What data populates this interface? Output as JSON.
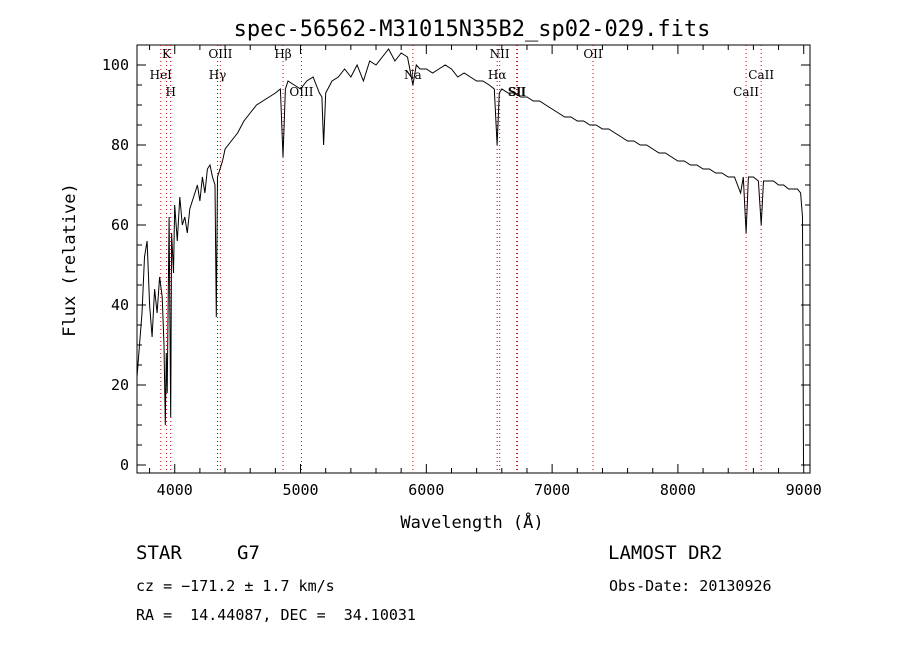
{
  "chart_data": {
    "type": "line",
    "title": "spec-56562-M31015N35B2_sp02-029.fits",
    "xlabel": "Wavelength (Å)",
    "ylabel": "Flux (relative)",
    "xlim": [
      3700,
      9050
    ],
    "ylim": [
      -2,
      105
    ],
    "xticks": [
      4000,
      5000,
      6000,
      7000,
      8000,
      9000
    ],
    "yticks": [
      0,
      20,
      40,
      60,
      80,
      100
    ],
    "grid": false,
    "line_color": "#000000",
    "marker_color": "#cc0000",
    "series": [
      {
        "x": [
          3700,
          3720,
          3740,
          3760,
          3780,
          3800,
          3820,
          3840,
          3860,
          3880,
          3900,
          3915,
          3925,
          3933,
          3940,
          3955,
          3968,
          3975,
          3990,
          4000,
          4020,
          4040,
          4060,
          4080,
          4100,
          4120,
          4140,
          4160,
          4180,
          4200,
          4220,
          4240,
          4260,
          4280,
          4300,
          4320,
          4330,
          4340,
          4360,
          4380,
          4400,
          4450,
          4500,
          4550,
          4600,
          4650,
          4700,
          4750,
          4800,
          4840,
          4861,
          4880,
          4900,
          4950,
          5000,
          5050,
          5100,
          5150,
          5170,
          5183,
          5200,
          5250,
          5300,
          5350,
          5400,
          5450,
          5500,
          5550,
          5600,
          5650,
          5700,
          5750,
          5800,
          5850,
          5893,
          5920,
          5950,
          6000,
          6050,
          6100,
          6150,
          6200,
          6250,
          6300,
          6350,
          6400,
          6450,
          6500,
          6540,
          6563,
          6580,
          6600,
          6650,
          6700,
          6750,
          6800,
          6850,
          6900,
          6950,
          7000,
          7050,
          7100,
          7150,
          7200,
          7250,
          7300,
          7350,
          7400,
          7450,
          7500,
          7550,
          7600,
          7650,
          7700,
          7750,
          7800,
          7850,
          7900,
          7950,
          8000,
          8050,
          8100,
          8150,
          8200,
          8250,
          8300,
          8350,
          8400,
          8450,
          8498,
          8520,
          8542,
          8560,
          8600,
          8640,
          8662,
          8680,
          8720,
          8760,
          8800,
          8840,
          8880,
          8920,
          8950,
          8975,
          8990,
          8998
        ],
        "y": [
          22,
          30,
          38,
          52,
          56,
          40,
          32,
          44,
          38,
          47,
          42,
          30,
          10,
          28,
          18,
          62,
          12,
          58,
          48,
          65,
          56,
          67,
          60,
          62,
          58,
          64,
          66,
          68,
          70,
          66,
          72,
          68,
          74,
          75,
          72,
          70,
          37,
          72,
          74,
          76,
          79,
          81,
          83,
          86,
          88,
          90,
          91,
          92,
          93,
          94,
          77,
          94,
          96,
          95,
          94,
          96,
          97,
          93,
          92,
          80,
          93,
          96,
          97,
          99,
          97,
          100,
          96,
          101,
          100,
          102,
          104,
          101,
          103,
          102,
          95,
          100,
          99,
          99,
          98,
          99,
          100,
          99,
          97,
          98,
          97,
          96,
          96,
          95,
          94,
          80,
          93,
          94,
          93,
          93,
          92,
          92,
          91,
          91,
          90,
          89,
          88,
          87,
          87,
          86,
          86,
          85,
          85,
          84,
          84,
          83,
          82,
          81,
          81,
          80,
          80,
          79,
          78,
          78,
          77,
          76,
          76,
          75,
          75,
          74,
          74,
          73,
          73,
          72,
          72,
          68,
          72,
          58,
          72,
          72,
          71,
          60,
          71,
          71,
          71,
          70,
          70,
          69,
          69,
          69,
          68,
          62,
          0
        ]
      }
    ],
    "annotations": [
      {
        "label": "K",
        "x": 3934
      },
      {
        "label": "HeI",
        "x": 3889
      },
      {
        "label": "H",
        "x": 3968
      },
      {
        "label": "OIII",
        "x": 4363
      },
      {
        "label": "Hγ",
        "x": 4340
      },
      {
        "label": "OIII",
        "x": 5007
      },
      {
        "label": "Hβ",
        "x": 4861
      },
      {
        "label": "Na",
        "x": 5893
      },
      {
        "label": "SII",
        "x": 6724
      },
      {
        "label": "NII",
        "x": 6583
      },
      {
        "label": "Hα",
        "x": 6563
      },
      {
        "label": "SII",
        "x": 6717
      },
      {
        "label": "OII",
        "x": 7325
      },
      {
        "label": "CaII",
        "x": 8662
      },
      {
        "label": "CaII",
        "x": 8542
      }
    ]
  },
  "info": {
    "object_class": "STAR",
    "subclass": "G7",
    "survey": "LAMOST DR2",
    "cz": "cz = −171.2 ± 1.7 km/s",
    "obs_date": "Obs-Date: 20130926",
    "coords": "RA =  14.44087, DEC =  34.10031"
  }
}
